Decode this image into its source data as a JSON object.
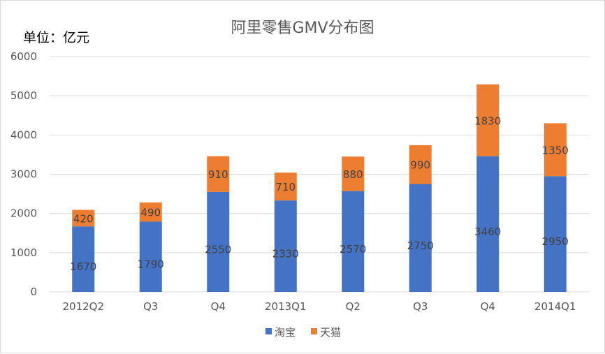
{
  "chart_data": {
    "type": "bar",
    "stacked": true,
    "title": "阿里零售GMV分布图",
    "unit_label": "单位：亿元",
    "categories": [
      "2012Q2",
      "Q3",
      "Q4",
      "2013Q1",
      "Q2",
      "Q3",
      "Q4",
      "2014Q1"
    ],
    "series": [
      {
        "name": "淘宝",
        "color": "#4472C4",
        "values": [
          1670,
          1790,
          2550,
          2330,
          2570,
          2750,
          3460,
          2950
        ]
      },
      {
        "name": "天猫",
        "color": "#ED7D31",
        "values": [
          420,
          490,
          910,
          710,
          880,
          990,
          1830,
          1350
        ]
      }
    ],
    "ylim": [
      0,
      6000
    ],
    "yticks": [
      0,
      1000,
      2000,
      3000,
      4000,
      5000,
      6000
    ],
    "grid": true,
    "legend_position": "bottom"
  }
}
